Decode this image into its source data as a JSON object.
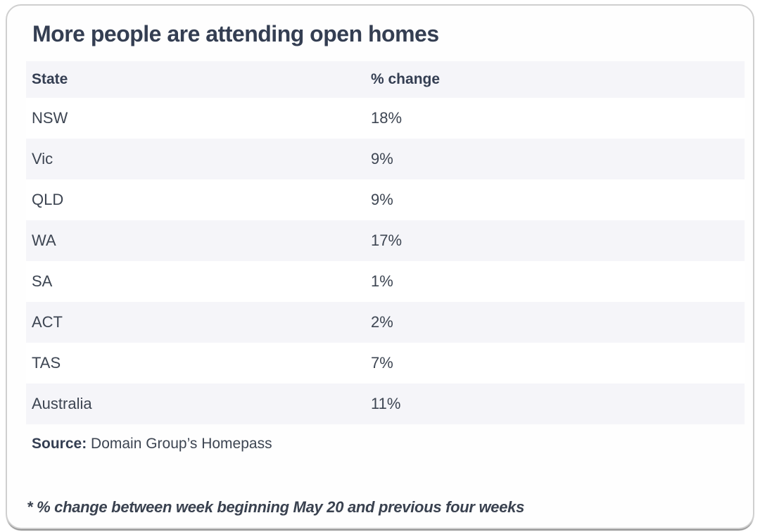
{
  "title": "More people are attending open homes",
  "table": {
    "columns": [
      "State",
      "% change"
    ],
    "rows": [
      {
        "state": "NSW",
        "change": "18%"
      },
      {
        "state": "Vic",
        "change": "9%"
      },
      {
        "state": "QLD",
        "change": "9%"
      },
      {
        "state": "WA",
        "change": "17%"
      },
      {
        "state": "SA",
        "change": "1%"
      },
      {
        "state": "ACT",
        "change": "2%"
      },
      {
        "state": "TAS",
        "change": "7%"
      },
      {
        "state": "Australia",
        "change": "11%"
      }
    ]
  },
  "source": {
    "label": "Source:",
    "text": " Domain Group’s Homepass"
  },
  "footnote": "* % change between week beginning May 20 and previous four weeks",
  "colors": {
    "title_text": "#343e52",
    "row_text": "#3d4552",
    "stripe_background": "#f5f5f9",
    "card_background": "#fefefe",
    "card_border": "#cfcfcf"
  },
  "chart_data": {
    "type": "table",
    "title": "More people are attending open homes",
    "columns": [
      "State",
      "% change"
    ],
    "categories": [
      "NSW",
      "Vic",
      "QLD",
      "WA",
      "SA",
      "ACT",
      "TAS",
      "Australia"
    ],
    "values": [
      18,
      9,
      9,
      17,
      1,
      2,
      7,
      11
    ],
    "unit": "%",
    "source": "Domain Group’s Homepass",
    "annotation": "* % change between week beginning May 20 and previous four weeks",
    "layout": {
      "striped_rows": true,
      "grid": false,
      "legend": "none"
    }
  }
}
